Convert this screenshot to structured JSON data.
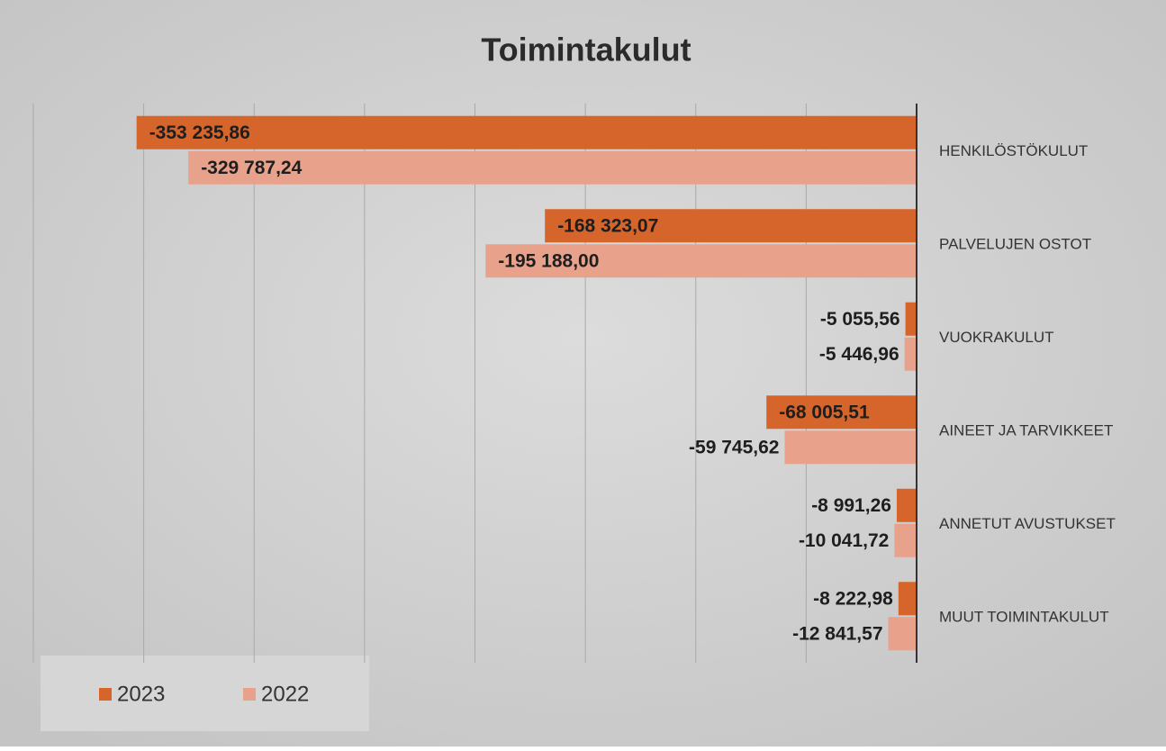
{
  "chart_data": {
    "type": "hbar",
    "title": "Toimintakulut",
    "categories": [
      "HENKILÖSTÖKULUT",
      "PALVELUJEN OSTOT",
      "VUOKRAKULUT",
      "AINEET JA TARVIKKEET",
      "ANNETUT AVUSTUKSET",
      "MUUT TOIMINTAKULUT"
    ],
    "series": [
      {
        "name": "2023",
        "color": "#d5652b",
        "values": [
          -353235.86,
          -168323.07,
          -5055.56,
          -68005.51,
          -8991.26,
          -8222.98
        ],
        "value_labels": [
          "-353 235,86",
          "-168 323,07",
          "-5 055,56",
          "-68 005,51",
          "-8 991,26",
          "-8 222,98"
        ]
      },
      {
        "name": "2022",
        "color": "#e8a28c",
        "values": [
          -329787.24,
          -195188.0,
          -5446.96,
          -59745.62,
          -10041.72,
          -12841.57
        ],
        "value_labels": [
          "-329 787,24",
          "-195 188,00",
          "-5 446,96",
          "-59 745,62",
          "-10 041,72",
          "-12 841,57"
        ]
      }
    ],
    "xlim": [
      -400000,
      0
    ],
    "xticks": [
      -400000,
      -350000,
      -300000,
      -250000,
      -200000,
      -150000,
      -100000,
      -50000,
      0
    ],
    "grid": true,
    "legend": "bottom-left"
  }
}
